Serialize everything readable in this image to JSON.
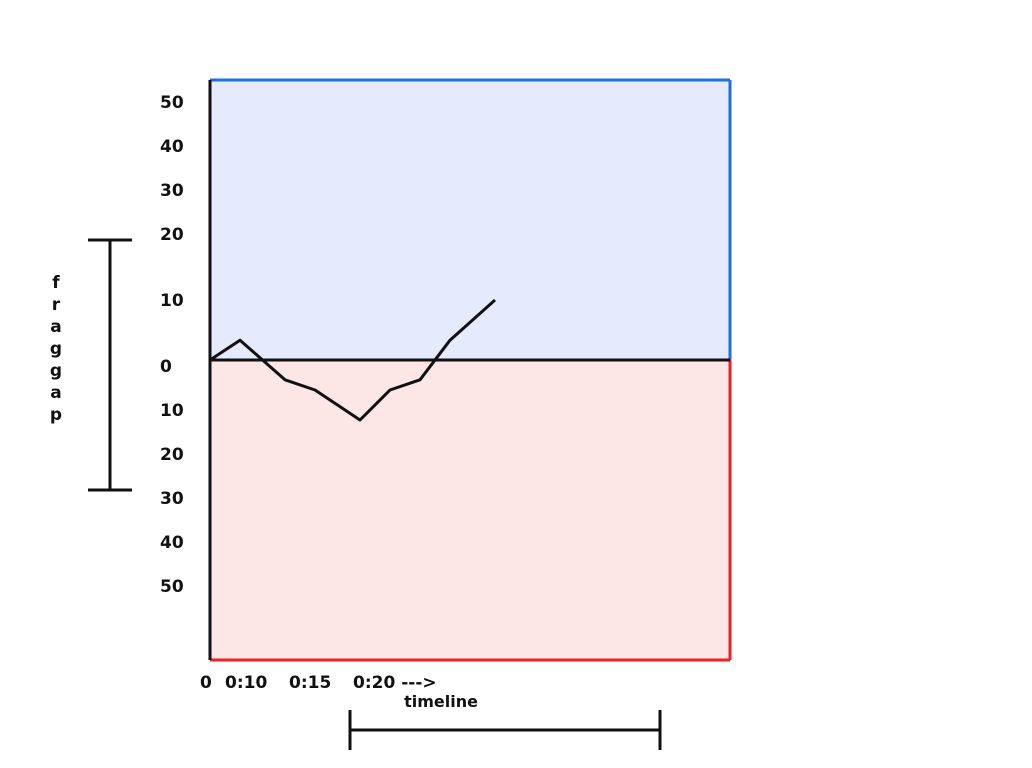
{
  "chart_data": {
    "type": "line",
    "title": "",
    "xlabel": "timeline",
    "ylabel": "fraggap",
    "x_tick_labels": [
      "0",
      "0:10",
      "0:15",
      "0:20 --->"
    ],
    "y_upper_ticks": [
      "50",
      "40",
      "30",
      "20",
      "10",
      "0"
    ],
    "y_lower_ticks": [
      "10",
      "20",
      "30",
      "40",
      "50"
    ],
    "ylim": [
      -50,
      50
    ],
    "grid": false,
    "series": [
      {
        "values_x": [
          0,
          2,
          5,
          7,
          10,
          12,
          14,
          16,
          19
        ],
        "values_y": [
          0,
          3.3,
          -3.3,
          -5,
          -10,
          -5,
          -3.3,
          3.3,
          10
        ]
      }
    ],
    "colors": {
      "upper_fill": "#e6eafd",
      "lower_fill": "#fde6e6",
      "upper_border": "#1f6fe0",
      "lower_border": "#ee2222",
      "line": "#111111"
    }
  }
}
